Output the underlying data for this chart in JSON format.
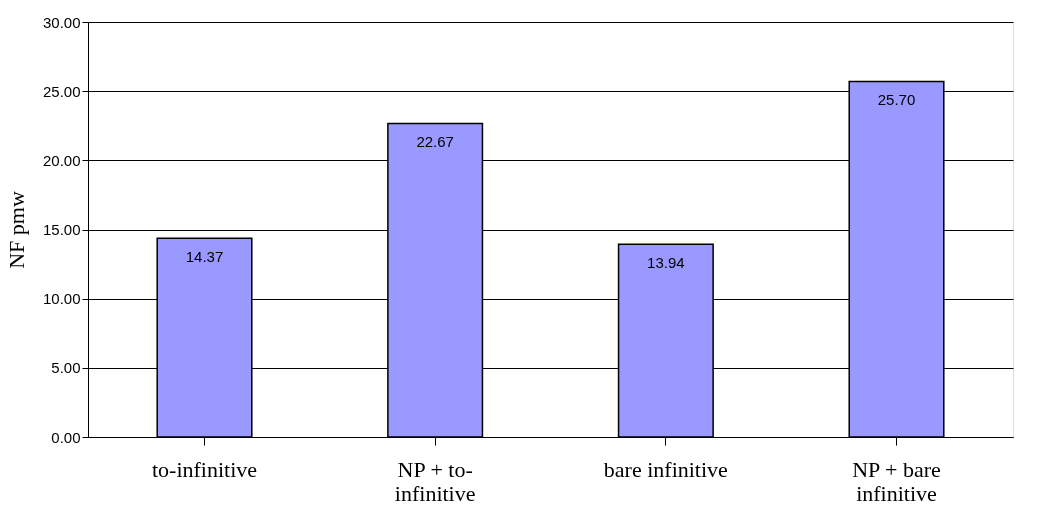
{
  "chart_data": {
    "type": "bar",
    "categories": [
      "to-infinitive",
      "NP + to-infinitive",
      "bare infinitive",
      "NP + bare infinitive"
    ],
    "values": [
      14.37,
      22.67,
      13.94,
      25.7
    ],
    "value_labels": [
      "14.37",
      "22.67",
      "13.94",
      "25.70"
    ],
    "color": "#9999ff",
    "ylabel": "NF pmw",
    "ylim": [
      0,
      30
    ],
    "yticks": [
      {
        "value": 0,
        "label": "0.00"
      },
      {
        "value": 5,
        "label": "5.00"
      },
      {
        "value": 10,
        "label": "10.00"
      },
      {
        "value": 15,
        "label": "15.00"
      },
      {
        "value": 20,
        "label": "20.00"
      },
      {
        "value": 25,
        "label": "25.00"
      },
      {
        "value": 30,
        "label": "30.00"
      }
    ],
    "grid": "y"
  }
}
